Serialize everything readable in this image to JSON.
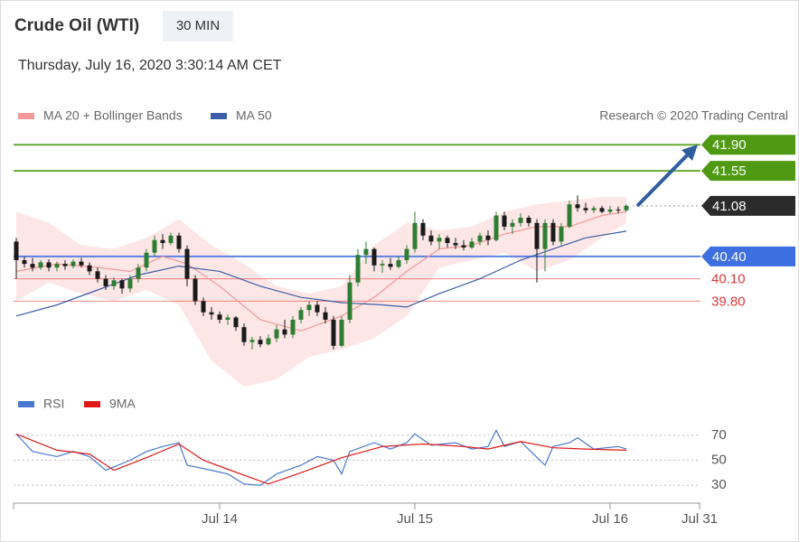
{
  "chart_data": [
    {
      "type": "candlestick",
      "title": "Crude Oil (WTI)",
      "timeframe": "30 MIN",
      "subtitle": "Thursday, July 16, 2020 3:30:14 AM CET",
      "credit": "Research © 2020 Trading Central",
      "xlim": [
        0,
        84
      ],
      "ylim": [
        38.7,
        42.0
      ],
      "up_color": "#2e7d32",
      "down_color": "#1a1a1a",
      "x": [
        0,
        1,
        2,
        3,
        4,
        5,
        6,
        7,
        8,
        9,
        10,
        11,
        12,
        13,
        14,
        15,
        16,
        17,
        18,
        19,
        20,
        21,
        22,
        23,
        24,
        25,
        26,
        27,
        28,
        29,
        30,
        31,
        32,
        33,
        34,
        35,
        36,
        37,
        38,
        39,
        40,
        41,
        42,
        43,
        44,
        45,
        46,
        47,
        48,
        49,
        50,
        51,
        52,
        53,
        54,
        55,
        56,
        57,
        58,
        59,
        60,
        61,
        62,
        63,
        64,
        65,
        66,
        67,
        68,
        69,
        70,
        71,
        72,
        73,
        74,
        75
      ],
      "ohlc": [
        [
          40.6,
          40.65,
          40.1,
          40.35
        ],
        [
          40.35,
          40.4,
          40.25,
          40.3
        ],
        [
          40.3,
          40.38,
          40.2,
          40.25
        ],
        [
          40.25,
          40.35,
          40.22,
          40.32
        ],
        [
          40.32,
          40.36,
          40.2,
          40.25
        ],
        [
          40.25,
          40.33,
          40.2,
          40.3
        ],
        [
          40.3,
          40.35,
          40.22,
          40.27
        ],
        [
          40.27,
          40.36,
          40.24,
          40.33
        ],
        [
          40.33,
          40.38,
          40.25,
          40.28
        ],
        [
          40.28,
          40.32,
          40.15,
          40.2
        ],
        [
          40.2,
          40.25,
          40.05,
          40.1
        ],
        [
          40.1,
          40.15,
          39.95,
          40.0
        ],
        [
          40.0,
          40.12,
          39.95,
          40.08
        ],
        [
          40.08,
          40.1,
          39.9,
          39.97
        ],
        [
          39.97,
          40.15,
          39.92,
          40.1
        ],
        [
          40.1,
          40.3,
          40.05,
          40.25
        ],
        [
          40.25,
          40.5,
          40.2,
          40.45
        ],
        [
          40.45,
          40.68,
          40.4,
          40.62
        ],
        [
          40.62,
          40.7,
          40.5,
          40.58
        ],
        [
          40.58,
          40.72,
          40.55,
          40.68
        ],
        [
          40.68,
          40.72,
          40.45,
          40.5
        ],
        [
          40.5,
          40.55,
          40.0,
          40.1
        ],
        [
          40.1,
          40.15,
          39.75,
          39.8
        ],
        [
          39.8,
          39.85,
          39.6,
          39.65
        ],
        [
          39.65,
          39.72,
          39.55,
          39.62
        ],
        [
          39.62,
          39.66,
          39.5,
          39.55
        ],
        [
          39.55,
          39.62,
          39.48,
          39.58
        ],
        [
          39.58,
          39.6,
          39.4,
          39.45
        ],
        [
          39.45,
          39.5,
          39.2,
          39.25
        ],
        [
          39.25,
          39.32,
          39.15,
          39.28
        ],
        [
          39.28,
          39.33,
          39.18,
          39.22
        ],
        [
          39.22,
          39.35,
          39.2,
          39.3
        ],
        [
          39.3,
          39.48,
          39.25,
          39.42
        ],
        [
          39.42,
          39.55,
          39.3,
          39.35
        ],
        [
          39.35,
          39.6,
          39.3,
          39.55
        ],
        [
          39.55,
          39.72,
          39.5,
          39.68
        ],
        [
          39.68,
          39.8,
          39.6,
          39.75
        ],
        [
          39.75,
          39.8,
          39.6,
          39.65
        ],
        [
          39.65,
          39.72,
          39.5,
          39.55
        ],
        [
          39.55,
          39.6,
          39.15,
          39.2
        ],
        [
          39.2,
          39.6,
          39.18,
          39.55
        ],
        [
          39.55,
          40.15,
          39.5,
          40.05
        ],
        [
          40.05,
          40.5,
          40.0,
          40.42
        ],
        [
          40.42,
          40.6,
          40.3,
          40.5
        ],
        [
          40.5,
          40.52,
          40.2,
          40.28
        ],
        [
          40.28,
          40.35,
          40.18,
          40.3
        ],
        [
          40.3,
          40.38,
          40.22,
          40.26
        ],
        [
          40.26,
          40.4,
          40.24,
          40.35
        ],
        [
          40.35,
          40.55,
          40.3,
          40.5
        ],
        [
          40.5,
          41.0,
          40.45,
          40.85
        ],
        [
          40.85,
          40.9,
          40.62,
          40.68
        ],
        [
          40.68,
          40.75,
          40.55,
          40.6
        ],
        [
          40.6,
          40.7,
          40.5,
          40.65
        ],
        [
          40.65,
          40.68,
          40.52,
          40.58
        ],
        [
          40.58,
          40.65,
          40.5,
          40.55
        ],
        [
          40.55,
          40.62,
          40.48,
          40.52
        ],
        [
          40.52,
          40.65,
          40.5,
          40.6
        ],
        [
          40.6,
          40.72,
          40.55,
          40.68
        ],
        [
          40.68,
          40.75,
          40.55,
          40.62
        ],
        [
          40.62,
          41.0,
          40.6,
          40.95
        ],
        [
          40.95,
          41.0,
          40.75,
          40.8
        ],
        [
          40.8,
          40.9,
          40.7,
          40.85
        ],
        [
          40.85,
          40.98,
          40.8,
          40.92
        ],
        [
          40.92,
          40.95,
          40.8,
          40.85
        ],
        [
          40.85,
          40.9,
          40.05,
          40.5
        ],
        [
          40.5,
          40.9,
          40.2,
          40.85
        ],
        [
          40.85,
          40.9,
          40.55,
          40.6
        ],
        [
          40.6,
          40.85,
          40.55,
          40.8
        ],
        [
          40.8,
          41.15,
          40.78,
          41.1
        ],
        [
          41.1,
          41.22,
          41.0,
          41.05
        ],
        [
          41.05,
          41.12,
          40.98,
          41.02
        ],
        [
          41.02,
          41.08,
          40.98,
          41.05
        ],
        [
          41.05,
          41.08,
          40.98,
          41.0
        ],
        [
          41.0,
          41.08,
          40.97,
          41.03
        ],
        [
          41.03,
          41.07,
          40.98,
          41.02
        ],
        [
          41.02,
          41.1,
          41.0,
          41.08
        ]
      ],
      "bands": {
        "color": "#fde0e0",
        "x": [
          0,
          4,
          8,
          12,
          16,
          20,
          24,
          28,
          32,
          36,
          40,
          44,
          48,
          52,
          56,
          60,
          64,
          68,
          72,
          75
        ],
        "upper": [
          41.0,
          40.85,
          40.55,
          40.5,
          40.65,
          40.9,
          40.55,
          40.3,
          40.0,
          39.9,
          40.0,
          40.55,
          40.85,
          40.75,
          40.8,
          41.0,
          41.1,
          41.15,
          41.2,
          41.2
        ],
        "lower": [
          39.8,
          40.05,
          39.9,
          39.8,
          39.95,
          39.75,
          39.0,
          38.65,
          38.75,
          39.05,
          39.15,
          39.3,
          39.6,
          40.25,
          40.35,
          40.45,
          40.2,
          40.35,
          40.65,
          40.85
        ]
      },
      "series": [
        {
          "name": "MA 20 + Bollinger Bands",
          "color": "#f29a9a",
          "x": [
            0,
            5,
            10,
            14,
            18,
            21,
            25,
            30,
            35,
            40,
            44,
            48,
            52,
            56,
            60,
            64,
            68,
            72,
            75
          ],
          "values": [
            40.2,
            40.3,
            40.25,
            40.2,
            40.4,
            40.3,
            40.0,
            39.55,
            39.4,
            39.6,
            39.85,
            40.2,
            40.5,
            40.55,
            40.7,
            40.8,
            40.8,
            40.95,
            41.0
          ]
        },
        {
          "name": "MA 50",
          "color": "#3a5ea8",
          "x": [
            0,
            5,
            10,
            15,
            20,
            25,
            30,
            35,
            40,
            45,
            48,
            52,
            57,
            62,
            66,
            70,
            75
          ],
          "values": [
            39.6,
            39.75,
            39.95,
            40.15,
            40.27,
            40.2,
            40.0,
            39.85,
            39.78,
            39.75,
            39.72,
            39.9,
            40.1,
            40.35,
            40.5,
            40.65,
            40.74
          ]
        }
      ],
      "levels": [
        {
          "value": 41.9,
          "label": "41.90",
          "color": "#4f9a12",
          "line": "solid",
          "tag": true
        },
        {
          "value": 41.55,
          "label": "41.55",
          "color": "#4f9a12",
          "line": "solid",
          "tag": true
        },
        {
          "value": 41.08,
          "label": "41.08",
          "color": "#2b2b2b",
          "line": "dotted",
          "tag": true
        },
        {
          "value": 40.4,
          "label": "40.40",
          "color": "#3d6fe0",
          "line": "solid",
          "tag": true
        },
        {
          "value": 40.1,
          "label": "40.10",
          "color": "#e0383a",
          "line": "solid",
          "tag": false
        },
        {
          "value": 39.8,
          "label": "39.80",
          "color": "#e0383a",
          "line": "solid",
          "tag": false
        }
      ]
    },
    {
      "type": "line",
      "xlim": [
        0,
        84
      ],
      "ylim": [
        20,
        80
      ],
      "yticks": [
        70,
        50,
        30
      ],
      "grid": true,
      "xticks": [
        {
          "value": 25,
          "label": "Jul 14"
        },
        {
          "value": 49,
          "label": "Jul 15"
        },
        {
          "value": 73,
          "label": "Jul 16"
        },
        {
          "value": 84,
          "label": "Jul 31"
        }
      ],
      "series": [
        {
          "name": "RSI",
          "color": "#4a78d0",
          "x": [
            0,
            2,
            5,
            7,
            9,
            11,
            14,
            16,
            18,
            20,
            21,
            24,
            26,
            28,
            30,
            32,
            35,
            37,
            39,
            40,
            41,
            44,
            46,
            48,
            49,
            51,
            54,
            56,
            58,
            59,
            60,
            62,
            65,
            66,
            68,
            69,
            71,
            74,
            75
          ],
          "values": [
            71,
            57,
            53,
            57,
            53,
            42,
            50,
            57,
            61,
            64,
            46,
            42,
            39,
            31,
            30,
            39,
            46,
            53,
            50,
            39,
            57,
            64,
            59,
            64,
            71,
            62,
            64,
            59,
            61,
            74,
            61,
            65,
            46,
            61,
            64,
            68,
            59,
            61,
            59
          ]
        },
        {
          "name": "9MA",
          "color": "#e01818",
          "x": [
            0,
            5,
            9,
            12,
            16,
            20,
            23,
            28,
            31,
            35,
            40,
            45,
            50,
            55,
            58,
            62,
            66,
            70,
            75
          ],
          "values": [
            71,
            58,
            55,
            42,
            52,
            63,
            50,
            38,
            31,
            40,
            52,
            61,
            63,
            61,
            59,
            65,
            60,
            59,
            58
          ]
        }
      ]
    }
  ]
}
